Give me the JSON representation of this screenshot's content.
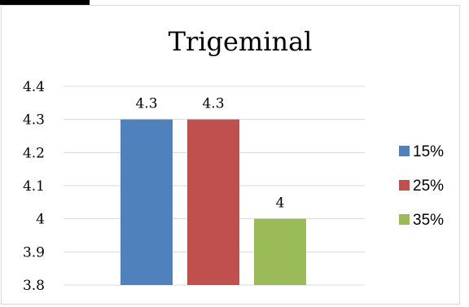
{
  "chart_data": {
    "type": "bar",
    "title": "Trigeminal",
    "categories": [
      ""
    ],
    "series": [
      {
        "name": "15%",
        "values": [
          4.3
        ],
        "color": "#4f81bd"
      },
      {
        "name": "25%",
        "values": [
          4.3
        ],
        "color": "#c0504d"
      },
      {
        "name": "35%",
        "values": [
          4.0
        ],
        "color": "#9bbb59"
      }
    ],
    "ylim": [
      3.8,
      4.4
    ],
    "yticks": [
      "3.8",
      "3.9",
      "4",
      "4.1",
      "4.2",
      "4.3",
      "4.4"
    ],
    "data_labels": [
      "4.3",
      "4.3",
      "4"
    ],
    "grid": true,
    "legend": "right"
  }
}
